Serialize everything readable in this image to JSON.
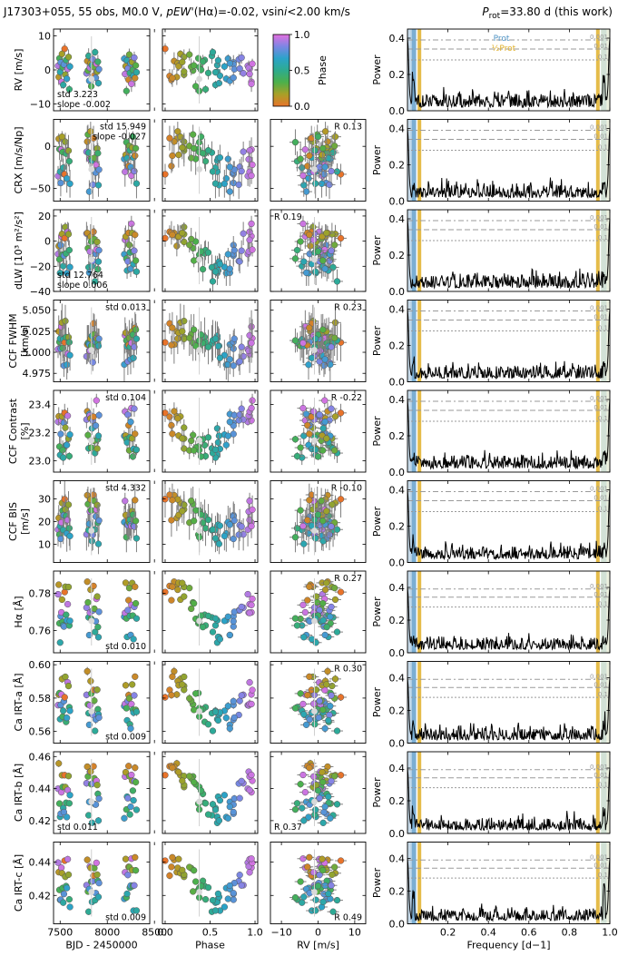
{
  "header": {
    "target": "J17303+055, 55 obs, M0.0 V, ",
    "pew_label": "pEW'",
    "pew_rest": "(Hα)=-0.02, vsin",
    "vsini_i": "i",
    "vsini_rest": "<2.00 km/s",
    "prot_p": "P",
    "prot_sub": "rot",
    "prot_rest": "=33.80 d (this work)"
  },
  "colorbar": {
    "label": "Phase",
    "ticks": [
      "0.0",
      "0.5",
      "1.0"
    ],
    "colors": [
      "#e8732a",
      "#a9a027",
      "#4cb04a",
      "#2eab8e",
      "#2ba3c9",
      "#7c86e4",
      "#e46fe0"
    ]
  },
  "x_axes": {
    "time": {
      "label": "BJD - 2450000",
      "ticks": [
        "7500",
        "8000",
        "8500"
      ],
      "range": [
        7430,
        8450
      ]
    },
    "phase": {
      "label": "Phase",
      "ticks": [
        "0.0",
        "0.5",
        "1.0"
      ],
      "range": [
        -0.03,
        1.03
      ]
    },
    "rv": {
      "label": "RV [m/s]",
      "ticks": [
        "−10",
        "0",
        "10"
      ],
      "range": [
        -13,
        13
      ]
    },
    "freq": {
      "label": "Frequency [d−1]",
      "ticks": [
        "0.2",
        "0.4",
        "0.6",
        "0.8",
        "1.0"
      ],
      "range": [
        0,
        1.0
      ]
    }
  },
  "periodogram": {
    "ylabel": "Power",
    "legend_prot": "Prot",
    "legend_half": "½Prot",
    "fap_labels": [
      "0.001",
      "0.01",
      "0.1"
    ],
    "colors": {
      "prot": "#4f93c4",
      "half": "#e0b02a"
    }
  },
  "chart_data": {
    "type": "scatter",
    "rows": [
      {
        "ylabel": "RV [m/s]",
        "ylim": [
          -12,
          12
        ],
        "ticks": [
          "−10",
          "0",
          "10"
        ],
        "stat_time": "std 3.223\nslope -0.002",
        "stat_time_pos": "bottom-left",
        "stat_corr": "",
        "power_ylim": [
          0,
          0.45
        ],
        "power_ticks": [
          "0.0",
          "0.2",
          "0.4"
        ]
      },
      {
        "ylabel": "CRX [m/s/Np]",
        "ylim": [
          -65,
          32
        ],
        "ticks": [
          "−50",
          "0"
        ],
        "stat_time": "std 15.949\nslope -0.027",
        "stat_time_pos": "top-right",
        "stat_corr": "R 0.13",
        "stat_corr_pos": "top-right",
        "power_ylim": [
          0,
          0.45
        ],
        "power_ticks": [
          "0.0",
          "0.2",
          "0.4"
        ]
      },
      {
        "ylabel": "dLW [10³ m²/s²]",
        "ylim": [
          -40,
          25
        ],
        "ticks": [
          "−40",
          "−20",
          "0",
          "20"
        ],
        "stat_time": "std 12.764\nslope 0.006",
        "stat_time_pos": "bottom-left",
        "stat_corr": "R 0.19",
        "stat_corr_pos": "top-left",
        "power_ylim": [
          0,
          0.45
        ],
        "power_ticks": [
          "0.0",
          "0.2",
          "0.4"
        ]
      },
      {
        "ylabel": "CCF FWHM [km/s]",
        "ylim": [
          4.965,
          5.062
        ],
        "ticks": [
          "4.975",
          "5.000",
          "5.025",
          "5.050"
        ],
        "stat_time": "std 0.013",
        "stat_time_pos": "top-right",
        "stat_corr": "R 0.23",
        "stat_corr_pos": "top-right",
        "power_ylim": [
          0,
          0.45
        ],
        "power_ticks": [
          "0.0",
          "0.2",
          "0.4"
        ]
      },
      {
        "ylabel": "CCF Contrast [%]",
        "ylim": [
          22.92,
          23.5
        ],
        "ticks": [
          "23.0",
          "23.2",
          "23.4"
        ],
        "stat_time": "std 0.104",
        "stat_time_pos": "top-right",
        "stat_corr": "R -0.22",
        "stat_corr_pos": "top-right",
        "power_ylim": [
          0,
          0.45
        ],
        "power_ticks": [
          "0.0",
          "0.2",
          "0.4"
        ]
      },
      {
        "ylabel": "CCF BIS [m/s]",
        "ylim": [
          2,
          38
        ],
        "ticks": [
          "10",
          "20",
          "30"
        ],
        "stat_time": "std 4.332",
        "stat_time_pos": "top-right",
        "stat_corr": "R -0.10",
        "stat_corr_pos": "top-right",
        "power_ylim": [
          0,
          0.45
        ],
        "power_ticks": [
          "0.0",
          "0.2",
          "0.4"
        ]
      },
      {
        "ylabel": "Hα [Å]",
        "ylim": [
          0.748,
          0.792
        ],
        "ticks": [
          "0.76",
          "0.78"
        ],
        "stat_time": "std 0.010",
        "stat_time_pos": "bottom-right",
        "stat_corr": "R 0.27",
        "stat_corr_pos": "top-right",
        "power_ylim": [
          0,
          0.5
        ],
        "power_ticks": [
          "0.0",
          "0.2",
          "0.4"
        ]
      },
      {
        "ylabel": "Ca IRT-a [Å]",
        "ylim": [
          0.553,
          0.602
        ],
        "ticks": [
          "0.56",
          "0.58",
          "0.60"
        ],
        "stat_time": "std 0.009",
        "stat_time_pos": "bottom-right",
        "stat_corr": "R 0.30",
        "stat_corr_pos": "top-right",
        "power_ylim": [
          0,
          0.5
        ],
        "power_ticks": [
          "0.0",
          "0.2",
          "0.4"
        ]
      },
      {
        "ylabel": "Ca IRT-b [Å]",
        "ylim": [
          0.412,
          0.463
        ],
        "ticks": [
          "0.42",
          "0.44",
          "0.46"
        ],
        "stat_time": "std 0.011",
        "stat_time_pos": "bottom-left",
        "stat_corr": "R 0.37",
        "stat_corr_pos": "bottom-left",
        "power_ylim": [
          0,
          0.5
        ],
        "power_ticks": [
          "0.0",
          "0.2",
          "0.4"
        ]
      },
      {
        "ylabel": "Ca IRT-c [Å]",
        "ylim": [
          0.403,
          0.452
        ],
        "ticks": [
          "0.42",
          "0.44"
        ],
        "stat_time": "std 0.009",
        "stat_time_pos": "bottom-right",
        "stat_corr": "R 0.49",
        "stat_corr_pos": "bottom-right",
        "power_ylim": [
          0,
          0.5
        ],
        "power_ticks": [
          "0.0",
          "0.2",
          "0.4"
        ]
      }
    ],
    "observations": [
      {
        "bjd": 7478,
        "phase": 0.92,
        "rv": 1.2
      },
      {
        "bjd": 7485,
        "phase": 0.13,
        "rv": -2.1
      },
      {
        "bjd": 7493,
        "phase": 0.37,
        "rv": 3.4
      },
      {
        "bjd": 7500,
        "phase": 0.58,
        "rv": -0.6
      },
      {
        "bjd": 7506,
        "phase": 0.76,
        "rv": 2.2
      },
      {
        "bjd": 7513,
        "phase": 0.96,
        "rv": -3.5
      },
      {
        "bjd": 7520,
        "phase": 0.17,
        "rv": 4.7
      },
      {
        "bjd": 7527,
        "phase": 0.38,
        "rv": 0.8
      },
      {
        "bjd": 7533,
        "phase": 0.56,
        "rv": -4.4
      },
      {
        "bjd": 7540,
        "phase": 0.76,
        "rv": 1.6
      },
      {
        "bjd": 7548,
        "phase": 0.0,
        "rv": 6.2
      },
      {
        "bjd": 7555,
        "phase": 0.21,
        "rv": -1.4
      },
      {
        "bjd": 7563,
        "phase": 0.44,
        "rv": 2.9
      },
      {
        "bjd": 7571,
        "phase": 0.68,
        "rv": -2.6
      },
      {
        "bjd": 7580,
        "phase": 0.94,
        "rv": 0.3
      },
      {
        "bjd": 7589,
        "phase": 0.21,
        "rv": 3.8
      },
      {
        "bjd": 7597,
        "phase": 0.45,
        "rv": -5.7
      },
      {
        "bjd": 7604,
        "phase": 0.66,
        "rv": 1.0
      },
      {
        "bjd": 7780,
        "phase": 0.87,
        "rv": -1.0
      },
      {
        "bjd": 7788,
        "phase": 0.1,
        "rv": 2.6
      },
      {
        "bjd": 7795,
        "phase": 0.31,
        "rv": -0.2
      },
      {
        "bjd": 7802,
        "phase": 0.52,
        "rv": 4.1
      },
      {
        "bjd": 7809,
        "phase": 0.72,
        "rv": -3.2
      },
      {
        "bjd": 7816,
        "phase": 0.93,
        "rv": 0.6
      },
      {
        "bjd": 7823,
        "phase": 0.14,
        "rv": 2.0
      },
      {
        "bjd": 7830,
        "phase": 0.34,
        "rv": -4.8
      },
      {
        "bjd": 7838,
        "phase": 0.58,
        "rv": 1.4
      },
      {
        "bjd": 7846,
        "phase": 0.82,
        "rv": 3.1
      },
      {
        "bjd": 7854,
        "phase": 0.05,
        "rv": -1.8
      },
      {
        "bjd": 7862,
        "phase": 0.29,
        "rv": 0.9
      },
      {
        "bjd": 7870,
        "phase": 0.53,
        "rv": 5.2
      },
      {
        "bjd": 7878,
        "phase": 0.76,
        "rv": -2.3
      },
      {
        "bjd": 7885,
        "phase": 0.97,
        "rv": 1.8
      },
      {
        "bjd": 7893,
        "phase": 0.21,
        "rv": -0.5
      },
      {
        "bjd": 7900,
        "phase": 0.42,
        "rv": 2.4
      },
      {
        "bjd": 7906,
        "phase": 0.6,
        "rv": -3.9
      },
      {
        "bjd": 7912,
        "phase": 0.77,
        "rv": 0.2
      },
      {
        "bjd": 8180,
        "phase": 0.7,
        "rv": 3.3
      },
      {
        "bjd": 8188,
        "phase": 0.94,
        "rv": -1.2
      },
      {
        "bjd": 8195,
        "phase": 0.15,
        "rv": 1.1
      },
      {
        "bjd": 8203,
        "phase": 0.38,
        "rv": -6.2
      },
      {
        "bjd": 8210,
        "phase": 0.59,
        "rv": 2.8
      },
      {
        "bjd": 8218,
        "phase": 0.83,
        "rv": 0.4
      },
      {
        "bjd": 8226,
        "phase": 0.07,
        "rv": -2.9
      },
      {
        "bjd": 8233,
        "phase": 0.27,
        "rv": 4.5
      },
      {
        "bjd": 8240,
        "phase": 0.48,
        "rv": -0.9
      },
      {
        "bjd": 8248,
        "phase": 0.72,
        "rv": 1.9
      },
      {
        "bjd": 8256,
        "phase": 0.96,
        "rv": -4.1
      },
      {
        "bjd": 8264,
        "phase": 0.19,
        "rv": 2.3
      },
      {
        "bjd": 8271,
        "phase": 0.4,
        "rv": 0.0
      },
      {
        "bjd": 8278,
        "phase": 0.61,
        "rv": -1.7
      },
      {
        "bjd": 8286,
        "phase": 0.85,
        "rv": 3.6
      },
      {
        "bjd": 8294,
        "phase": 0.08,
        "rv": -2.4
      },
      {
        "bjd": 8302,
        "phase": 0.32,
        "rv": 1.3
      },
      {
        "bjd": 8310,
        "phase": 0.56,
        "rv": -0.7
      }
    ],
    "outlier": {
      "bjd": 7832,
      "phase": 0.38,
      "rv": -1.0
    }
  }
}
